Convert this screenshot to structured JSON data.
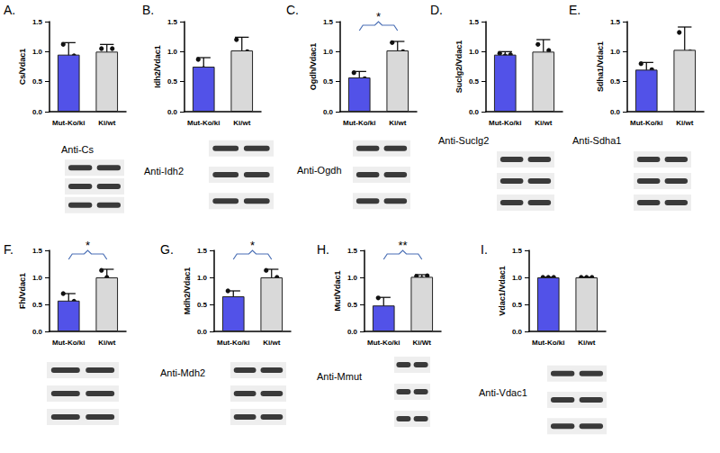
{
  "chart_data": [
    {
      "type": "bar",
      "title": "A.",
      "subtitle": "Anti-Cs",
      "ylabel": "Cs/Vdac1",
      "categories": [
        "Mut-Ko/ki",
        "Ki/wt"
      ],
      "values": [
        0.95,
        1.0
      ],
      "errors": [
        0.2,
        0.12
      ],
      "points": [
        [
          1.12,
          0.82,
          0.93
        ],
        [
          1.05,
          0.93,
          1.05
        ]
      ],
      "colors": [
        "#5252e8",
        "#d9d9d9"
      ],
      "ylim": [
        0,
        1.5
      ],
      "yticks": [
        {
          "value": 0,
          "label": "0.0"
        },
        {
          "value": 0.5,
          "label": "0.5"
        },
        {
          "value": 1,
          "label": "1.0"
        },
        {
          "value": 1.5,
          "label": "1.5"
        }
      ]
    },
    {
      "type": "bar",
      "title": "B.",
      "subtitle": "Anti-Idh2",
      "ylabel": "Idh2/Vdac1",
      "categories": [
        "Mut-Ko/ki",
        "Ki/wt"
      ],
      "values": [
        0.75,
        1.02
      ],
      "errors": [
        0.15,
        0.22
      ],
      "points": [
        [
          0.87,
          0.72,
          0.62
        ],
        [
          1.2,
          0.85,
          1.0
        ]
      ],
      "colors": [
        "#5252e8",
        "#d9d9d9"
      ],
      "ylim": [
        0,
        1.5
      ],
      "yticks": [
        {
          "value": 0,
          "label": "0.0"
        },
        {
          "value": 0.5,
          "label": "0.5"
        },
        {
          "value": 1,
          "label": "1.0"
        },
        {
          "value": 1.5,
          "label": "1.5"
        }
      ]
    },
    {
      "type": "bar",
      "title": "C.",
      "subtitle": "Anti-Ogdh",
      "ylabel": "Ogdh/Vdac1",
      "categories": [
        "Mut-Ko/ki",
        "Ki/wt"
      ],
      "values": [
        0.57,
        1.02
      ],
      "errors": [
        0.1,
        0.15
      ],
      "points": [
        [
          0.65,
          0.5,
          0.55
        ],
        [
          1.15,
          0.9,
          1.0
        ]
      ],
      "colors": [
        "#5252e8",
        "#d9d9d9"
      ],
      "ylim": [
        0,
        1.5
      ],
      "yticks": [
        {
          "value": 0,
          "label": "0.0"
        },
        {
          "value": 0.5,
          "label": "0.5"
        },
        {
          "value": 1,
          "label": "1.0"
        },
        {
          "value": 1.5,
          "label": "1.5"
        }
      ],
      "annotations": [
        "*"
      ]
    },
    {
      "type": "bar",
      "title": "D.",
      "subtitle": "Anti-Suclg2",
      "ylabel": "Suclg2/Vdac1",
      "categories": [
        "Mut-Ko/ki",
        "Ki/wt"
      ],
      "values": [
        0.95,
        1.0
      ],
      "errors": [
        0.05,
        0.2
      ],
      "points": [
        [
          0.97,
          0.93,
          0.95
        ],
        [
          1.12,
          0.85,
          1.02
        ]
      ],
      "colors": [
        "#5252e8",
        "#d9d9d9"
      ],
      "ylim": [
        0,
        1.5
      ],
      "yticks": [
        {
          "value": 0,
          "label": "0.0"
        },
        {
          "value": 0.5,
          "label": "0.5"
        },
        {
          "value": 1,
          "label": "1.0"
        },
        {
          "value": 1.5,
          "label": "1.5"
        }
      ]
    },
    {
      "type": "bar",
      "title": "E.",
      "subtitle": "Anti-Sdha1",
      "ylabel": "Sdha1/Vdac1",
      "categories": [
        "Mut-Ko/ki",
        "Ki/wt"
      ],
      "values": [
        0.7,
        1.03
      ],
      "errors": [
        0.12,
        0.38
      ],
      "points": [
        [
          0.8,
          0.6,
          0.7
        ],
        [
          1.32,
          0.78,
          1.0
        ]
      ],
      "colors": [
        "#5252e8",
        "#d9d9d9"
      ],
      "ylim": [
        0,
        1.5
      ],
      "yticks": [
        {
          "value": 0,
          "label": "0.0"
        },
        {
          "value": 0.5,
          "label": "0.5"
        },
        {
          "value": 1,
          "label": "1.0"
        },
        {
          "value": 1.5,
          "label": "1.5"
        }
      ]
    },
    {
      "type": "bar",
      "title": "F.",
      "ylabel": "Fh/Vdac1",
      "categories": [
        "Mut-Ko/ki",
        "Ki/wt"
      ],
      "values": [
        0.57,
        1.0
      ],
      "errors": [
        0.13,
        0.15
      ],
      "points": [
        [
          0.7,
          0.45,
          0.56
        ],
        [
          1.13,
          1.0,
          0.87
        ]
      ],
      "colors": [
        "#5252e8",
        "#d9d9d9"
      ],
      "ylim": [
        0,
        1.5
      ],
      "yticks": [
        {
          "value": 0,
          "label": "0.0"
        },
        {
          "value": 0.5,
          "label": "0.5"
        },
        {
          "value": 1,
          "label": "1.0"
        },
        {
          "value": 1.5,
          "label": "1.5"
        }
      ],
      "annotations": [
        "*"
      ]
    },
    {
      "type": "bar",
      "title": "G.",
      "subtitle": "Anti-Mdh2",
      "ylabel": "Mdh2/Vdac1",
      "categories": [
        "Mut-Ko/ki",
        "Ki/wt"
      ],
      "values": [
        0.65,
        1.0
      ],
      "errors": [
        0.1,
        0.15
      ],
      "points": [
        [
          0.75,
          0.6,
          0.6
        ],
        [
          1.13,
          0.9,
          1.0
        ]
      ],
      "colors": [
        "#5252e8",
        "#d9d9d9"
      ],
      "ylim": [
        0,
        1.5
      ],
      "yticks": [
        {
          "value": 0,
          "label": "0.0"
        },
        {
          "value": 0.5,
          "label": "0.5"
        },
        {
          "value": 1,
          "label": "1.0"
        },
        {
          "value": 1.5,
          "label": "1.5"
        }
      ],
      "annotations": [
        "*"
      ]
    },
    {
      "type": "bar",
      "title": "H.",
      "subtitle": "Anti-Mmut",
      "ylabel": "Mut/Vdac1",
      "categories": [
        "Mut-Ko/ki",
        "Ki/Wt"
      ],
      "values": [
        0.48,
        1.01
      ],
      "errors": [
        0.15,
        0.04
      ],
      "points": [
        [
          0.62,
          0.42,
          0.4
        ],
        [
          1.02,
          0.98,
          1.03
        ]
      ],
      "colors": [
        "#5252e8",
        "#d9d9d9"
      ],
      "ylim": [
        0,
        1.5
      ],
      "yticks": [
        {
          "value": 0,
          "label": "0.0"
        },
        {
          "value": 0.5,
          "label": "0.5"
        },
        {
          "value": 1,
          "label": "1.0"
        },
        {
          "value": 1.5,
          "label": "1.5"
        }
      ],
      "annotations": [
        "**"
      ]
    },
    {
      "type": "bar",
      "title": "I.",
      "subtitle": "Anti-Vdac1",
      "ylabel": "Vdac1/Vdac1",
      "categories": [
        "Mut-Ko/ki",
        "Ki/wt"
      ],
      "values": [
        1.0,
        1.0
      ],
      "errors": [
        0,
        0
      ],
      "points": [
        [
          1.0,
          1.0,
          1.0
        ],
        [
          1.0,
          1.0,
          1.0
        ]
      ],
      "colors": [
        "#5252e8",
        "#d9d9d9"
      ],
      "ylim": [
        0,
        1.5
      ],
      "yticks": [
        {
          "value": 0,
          "label": "0.0"
        },
        {
          "value": 0.5,
          "label": "0.5"
        },
        {
          "value": 1,
          "label": "1.0"
        },
        {
          "value": 1.5,
          "label": "1.5"
        }
      ]
    }
  ]
}
